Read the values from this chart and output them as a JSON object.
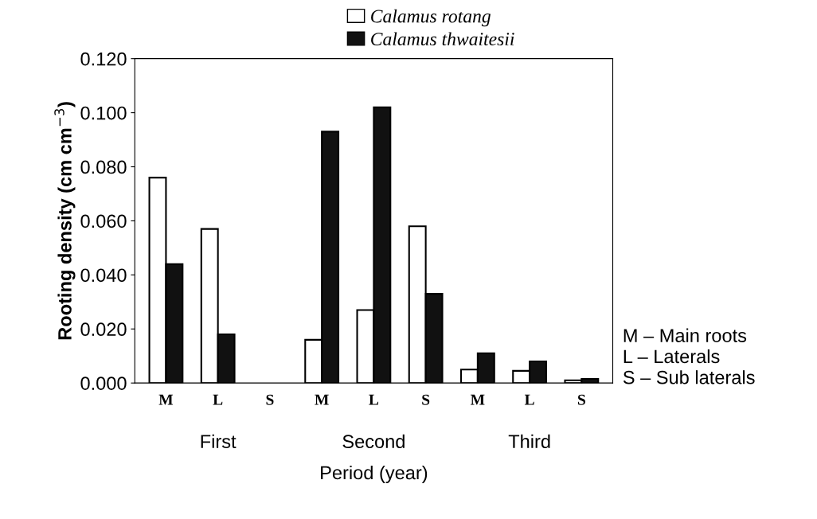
{
  "chart_data": {
    "type": "bar",
    "ylabel": "Rooting density (cm cm$^{−3}$)",
    "xlabel": "Period (year)",
    "categories": [
      "M",
      "L",
      "S",
      "M",
      "L",
      "S",
      "M",
      "L",
      "S"
    ],
    "series": [
      {
        "name": "Calamus rotang",
        "color": "#ffffff",
        "values": [
          0.076,
          0.057,
          null,
          0.016,
          0.027,
          0.058,
          0.005,
          0.0045,
          0.001
        ]
      },
      {
        "name": "Calamus thwaitesii",
        "color": "#111111",
        "values": [
          0.044,
          0.018,
          null,
          0.093,
          0.102,
          0.033,
          0.011,
          0.008,
          0.0015
        ]
      }
    ],
    "ylim": [
      0,
      0.12
    ],
    "yticks": [
      {
        "value": 0,
        "label": "0.000"
      },
      {
        "value": 0.02,
        "label": "0.020"
      },
      {
        "value": 0.04,
        "label": "0.040"
      },
      {
        "value": 0.06,
        "label": "0.060"
      },
      {
        "value": 0.08,
        "label": "0.080"
      },
      {
        "value": 0.1,
        "label": "0.100"
      },
      {
        "value": 0.12,
        "label": "0.120"
      }
    ],
    "annotations": [
      "First",
      "Second",
      "Third",
      "M – Main roots\nL – Laterals\nS – Sub laterals"
    ],
    "legend": "top",
    "grid": false
  }
}
